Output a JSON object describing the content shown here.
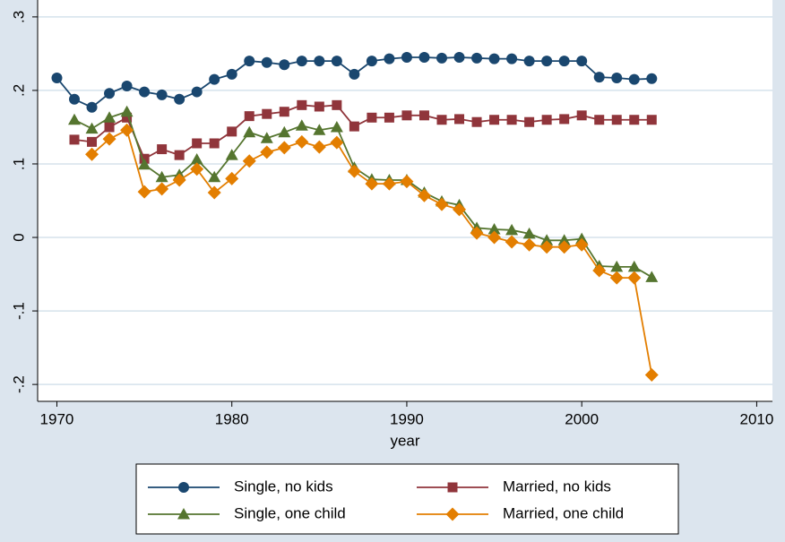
{
  "chart_data": {
    "type": "line",
    "x_label": "year",
    "x": [
      1970,
      1971,
      1972,
      1973,
      1974,
      1975,
      1976,
      1977,
      1978,
      1979,
      1980,
      1981,
      1982,
      1983,
      1984,
      1985,
      1986,
      1987,
      1988,
      1989,
      1990,
      1991,
      1992,
      1993,
      1994,
      1995,
      1996,
      1997,
      1998,
      1999,
      2000,
      2001,
      2002,
      2003,
      2004
    ],
    "series": [
      {
        "name": "Single, no kids",
        "color": "#1a476f",
        "marker": "circle",
        "values": [
          0.217,
          0.188,
          0.177,
          0.196,
          0.206,
          0.198,
          0.194,
          0.188,
          0.198,
          0.215,
          0.222,
          0.24,
          0.238,
          0.235,
          0.24,
          0.24,
          0.24,
          0.222,
          0.24,
          0.243,
          0.245,
          0.245,
          0.244,
          0.245,
          0.244,
          0.243,
          0.243,
          0.24,
          0.24,
          0.24,
          0.24,
          0.218,
          0.217,
          0.215,
          0.216
        ]
      },
      {
        "name": "Married, no kids",
        "color": "#90353b",
        "marker": "square",
        "values": [
          null,
          0.133,
          0.13,
          0.15,
          0.163,
          0.107,
          0.12,
          0.112,
          0.128,
          0.128,
          0.144,
          0.165,
          0.168,
          0.171,
          0.18,
          0.178,
          0.18,
          0.151,
          0.163,
          0.163,
          0.166,
          0.166,
          0.16,
          0.161,
          0.157,
          0.16,
          0.16,
          0.157,
          0.16,
          0.161,
          0.166,
          0.16,
          0.16,
          0.16,
          0.16
        ]
      },
      {
        "name": "Single, one child",
        "color": "#55752f",
        "marker": "triangle",
        "values": [
          null,
          0.16,
          0.148,
          0.163,
          0.171,
          0.099,
          0.082,
          0.085,
          0.106,
          0.082,
          0.112,
          0.143,
          0.135,
          0.143,
          0.152,
          0.146,
          0.15,
          0.095,
          0.079,
          0.078,
          0.078,
          0.061,
          0.049,
          0.044,
          0.013,
          0.011,
          0.01,
          0.005,
          -0.004,
          -0.004,
          -0.002,
          -0.039,
          -0.04,
          -0.04,
          -0.054
        ]
      },
      {
        "name": "Married, one child",
        "color": "#e37e00",
        "marker": "diamond",
        "values": [
          null,
          null,
          0.113,
          0.134,
          0.146,
          0.062,
          0.066,
          0.078,
          0.093,
          0.061,
          0.08,
          0.104,
          0.116,
          0.122,
          0.13,
          0.123,
          0.129,
          0.09,
          0.073,
          0.073,
          0.076,
          0.057,
          0.045,
          0.038,
          0.006,
          0.0,
          -0.006,
          -0.01,
          -0.013,
          -0.013,
          -0.01,
          -0.045,
          -0.055,
          -0.055,
          -0.187
        ]
      }
    ],
    "xlim": [
      1968.9,
      2010.9
    ],
    "xticks": [
      1970,
      1980,
      1990,
      2000,
      2010
    ],
    "ylim": [
      -0.223,
      0.323
    ],
    "yticks": [
      {
        "value": -0.2,
        "label": "-.2"
      },
      {
        "value": -0.1,
        "label": "-.1"
      },
      0,
      {
        "value": 0.1,
        "label": ".1"
      },
      {
        "value": 0.2,
        "label": ".2"
      },
      {
        "value": 0.3,
        "label": ".3"
      }
    ],
    "grid": true,
    "legend": "bottom"
  }
}
